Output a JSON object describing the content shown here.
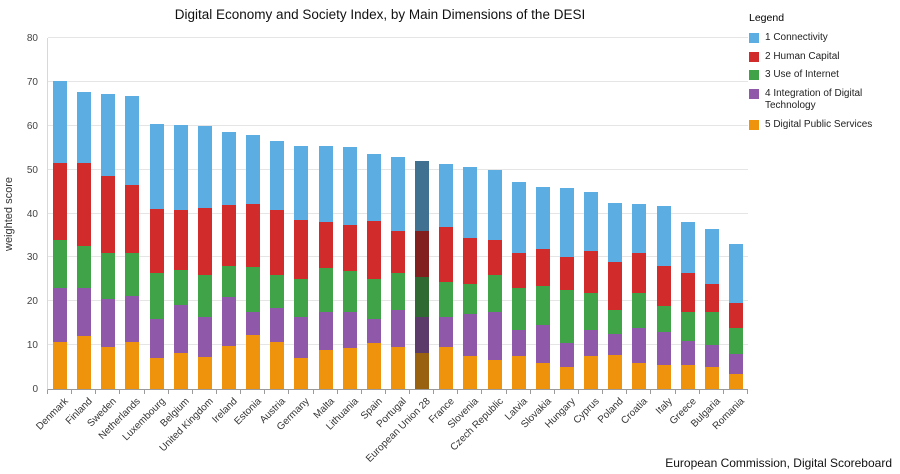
{
  "chart_data": {
    "type": "bar",
    "stacked": true,
    "title": "Digital Economy and Society Index, by Main Dimensions of the DESI",
    "ylabel": "weighted score",
    "ylim": [
      0,
      80
    ],
    "ytick_step": 10,
    "legend_title": "Legend",
    "legend_position": "top-right",
    "grid": true,
    "source": "European Commission, Digital Scoreboard",
    "highlight_category": "European Union 28",
    "categories": [
      "Denmark",
      "Finland",
      "Sweden",
      "Netherlands",
      "Luxembourg",
      "Belgium",
      "United Kingdom",
      "Ireland",
      "Estonia",
      "Austria",
      "Germany",
      "Malta",
      "Lithuania",
      "Spain",
      "Portugal",
      "European Union 28",
      "France",
      "Slovenia",
      "Czech Republic",
      "Latvia",
      "Slovakia",
      "Hungary",
      "Cyprus",
      "Poland",
      "Croatia",
      "Italy",
      "Greece",
      "Bulgaria",
      "Romania"
    ],
    "series": [
      {
        "name": "1 Connectivity",
        "color": "#5cade2",
        "values": [
          18.8,
          16.3,
          18.8,
          20.2,
          19.5,
          19.3,
          18.8,
          16.5,
          15.6,
          15.8,
          17.0,
          17.3,
          17.7,
          15.2,
          16.8,
          16.0,
          14.2,
          16.0,
          16.0,
          16.2,
          14.0,
          15.8,
          13.5,
          13.3,
          11.2,
          13.8,
          11.5,
          12.5,
          13.5
        ]
      },
      {
        "name": "2 Human Capital",
        "color": "#d22b2b",
        "values": [
          17.5,
          19.0,
          17.5,
          15.5,
          14.5,
          13.8,
          15.2,
          14.0,
          14.4,
          14.8,
          13.5,
          10.5,
          10.5,
          13.3,
          9.5,
          10.5,
          12.5,
          10.5,
          8.0,
          8.0,
          8.5,
          7.5,
          9.5,
          11.0,
          9.0,
          9.0,
          9.0,
          6.5,
          5.5
        ]
      },
      {
        "name": "3 Use of Internet",
        "color": "#41a347",
        "values": [
          11.0,
          9.5,
          10.5,
          9.8,
          10.5,
          8.0,
          9.5,
          7.0,
          10.3,
          7.5,
          8.5,
          10.0,
          9.5,
          9.0,
          8.5,
          9.0,
          8.0,
          7.0,
          8.5,
          9.5,
          9.0,
          12.0,
          8.5,
          5.5,
          8.0,
          6.0,
          6.5,
          7.5,
          6.0
        ]
      },
      {
        "name": "4 Integration of Digital Technology",
        "color": "#8f58a8",
        "values": [
          12.2,
          11.0,
          11.0,
          10.5,
          9.0,
          10.8,
          9.2,
          11.2,
          5.3,
          7.7,
          9.5,
          8.5,
          8.2,
          5.5,
          8.5,
          8.2,
          7.0,
          9.5,
          11.0,
          6.0,
          8.5,
          5.5,
          6.0,
          4.7,
          8.0,
          7.5,
          5.5,
          5.0,
          4.5
        ]
      },
      {
        "name": "5 Digital Public Services",
        "color": "#f0930c",
        "values": [
          10.8,
          12.0,
          9.5,
          10.8,
          7.0,
          8.3,
          7.3,
          9.8,
          12.2,
          10.8,
          7.0,
          9.0,
          9.3,
          10.5,
          9.5,
          8.3,
          9.5,
          7.5,
          6.5,
          7.5,
          6.0,
          5.0,
          7.5,
          7.8,
          6.0,
          5.5,
          5.5,
          5.0,
          3.5
        ]
      }
    ]
  }
}
